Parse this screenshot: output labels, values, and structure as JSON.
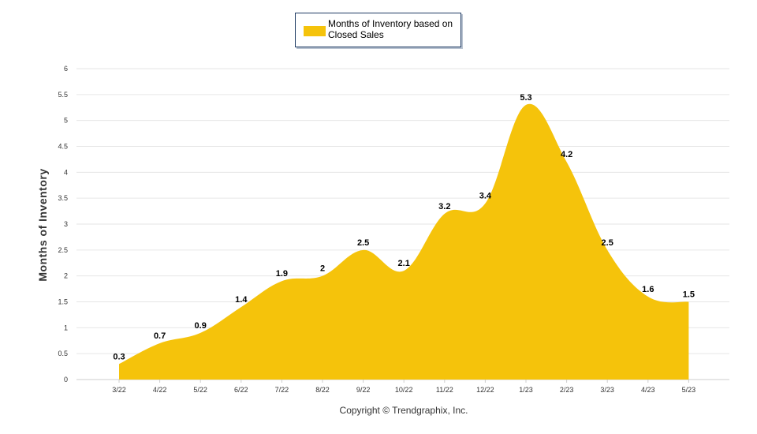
{
  "chart_data": {
    "type": "area",
    "categories": [
      "3/22",
      "4/22",
      "5/22",
      "6/22",
      "7/22",
      "8/22",
      "9/22",
      "10/22",
      "11/22",
      "12/22",
      "1/23",
      "2/23",
      "3/23",
      "4/23",
      "5/23"
    ],
    "series": [
      {
        "name": "Months of Inventory based on Closed Sales",
        "values": [
          0.3,
          0.7,
          0.9,
          1.4,
          1.9,
          2,
          2.5,
          2.1,
          3.2,
          3.4,
          5.3,
          4.2,
          2.5,
          1.6,
          1.5
        ],
        "color": "#f5c30b"
      }
    ],
    "ylabel": "Months of Inventory",
    "xlabel": "",
    "ylim": [
      0,
      6
    ],
    "yticks": [
      "0",
      "0.5",
      "1",
      "1.5",
      "2",
      "2.5",
      "3",
      "3.5",
      "4",
      "4.5",
      "5",
      "5.5",
      "6"
    ],
    "grid": true,
    "legend": "top-center",
    "copyright": "Copyright © Trendgraphix, Inc."
  },
  "colors": {
    "area": "#f5c30b",
    "grid": "#e6e6e6",
    "legend_border": "#1f3b63"
  }
}
